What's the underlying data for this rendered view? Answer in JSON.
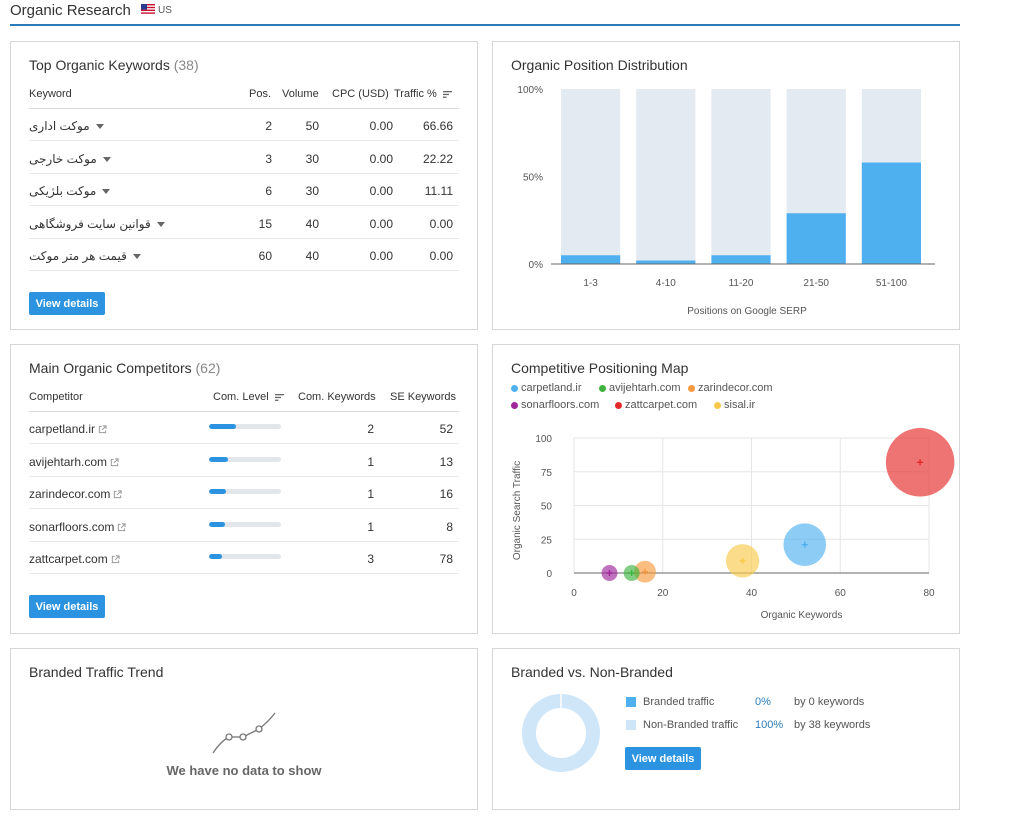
{
  "header": {
    "title": "Organic Research",
    "country": "US",
    "flag_icon": "us-flag-icon"
  },
  "top_keywords": {
    "title": "Top Organic Keywords",
    "count": "(38)",
    "columns": {
      "keyword": "Keyword",
      "pos": "Pos.",
      "volume": "Volume",
      "cpc": "CPC (USD)",
      "traffic": "Traffic %"
    },
    "rows": [
      {
        "keyword": "موکت اداری",
        "pos": "2",
        "volume": "50",
        "cpc": "0.00",
        "traffic": "66.66"
      },
      {
        "keyword": "موکت خارجی",
        "pos": "3",
        "volume": "30",
        "cpc": "0.00",
        "traffic": "22.22"
      },
      {
        "keyword": "موکت بلژیکی",
        "pos": "6",
        "volume": "30",
        "cpc": "0.00",
        "traffic": "11.11"
      },
      {
        "keyword": "قوانین سایت فروشگاهی",
        "pos": "15",
        "volume": "40",
        "cpc": "0.00",
        "traffic": "0.00"
      },
      {
        "keyword": "قیمت هر متر موکت",
        "pos": "60",
        "volume": "40",
        "cpc": "0.00",
        "traffic": "0.00"
      }
    ],
    "button": "View details"
  },
  "position_distribution": {
    "title": "Organic Position Distribution",
    "xlabel": "Positions on Google SERP"
  },
  "competitors": {
    "title": "Main Organic Competitors",
    "count": "(62)",
    "columns": {
      "competitor": "Competitor",
      "level": "Com. Level",
      "com_keywords": "Com. Keywords",
      "se_keywords": "SE Keywords"
    },
    "rows": [
      {
        "domain": "carpetland.ir",
        "level": 0.38,
        "com_keywords": "2",
        "se_keywords": "52"
      },
      {
        "domain": "avijehtarh.com",
        "level": 0.26,
        "com_keywords": "1",
        "se_keywords": "13"
      },
      {
        "domain": "zarindecor.com",
        "level": 0.24,
        "com_keywords": "1",
        "se_keywords": "16"
      },
      {
        "domain": "sonarfloors.com",
        "level": 0.22,
        "com_keywords": "1",
        "se_keywords": "8"
      },
      {
        "domain": "zattcarpet.com",
        "level": 0.18,
        "com_keywords": "3",
        "se_keywords": "78"
      }
    ],
    "button": "View details"
  },
  "positioning_map": {
    "title": "Competitive Positioning Map",
    "xlabel": "Organic Keywords",
    "ylabel": "Organic Search Traffic"
  },
  "branded_trend": {
    "title": "Branded Traffic Trend",
    "no_data": "We have no data to show"
  },
  "branded_vs_nonbranded": {
    "title": "Branded vs. Non-Branded",
    "branded_label": "Branded traffic",
    "branded_pct": "0%",
    "branded_kw": "by 0 keywords",
    "nonbranded_label": "Non-Branded traffic",
    "nonbranded_pct": "100%",
    "nonbranded_kw": "by 38 keywords",
    "button": "View details",
    "colors": {
      "branded": "#4fb0f0",
      "nonbranded": "#cfe6f8"
    }
  },
  "chart_data": [
    {
      "type": "bar",
      "title": "Organic Position Distribution",
      "categories": [
        "1-3",
        "4-10",
        "11-20",
        "21-50",
        "51-100"
      ],
      "values": [
        5,
        2,
        5,
        29,
        58
      ],
      "ylim": [
        0,
        100
      ],
      "yticks": [
        "0%",
        "50%",
        "100%"
      ],
      "xlabel": "Positions on Google SERP",
      "colors": {
        "bar": "#4fb0f0",
        "background": "#e3eaf1"
      }
    },
    {
      "type": "scatter",
      "title": "Competitive Positioning Map",
      "xlabel": "Organic Keywords",
      "ylabel": "Organic Search Traffic",
      "xlim": [
        0,
        80
      ],
      "ylim": [
        0,
        100
      ],
      "xticks": [
        "0",
        "20",
        "40",
        "60",
        "80"
      ],
      "yticks": [
        "0",
        "25",
        "50",
        "75",
        "100"
      ],
      "series": [
        {
          "name": "carpetland.ir",
          "x": 52,
          "y": 21,
          "color": "#4fb0f0"
        },
        {
          "name": "avijehtarh.com",
          "x": 13,
          "y": 0,
          "color": "#3fb33f"
        },
        {
          "name": "zarindecor.com",
          "x": 16,
          "y": 1,
          "color": "#f89a3f"
        },
        {
          "name": "sonarfloors.com",
          "x": 8,
          "y": 0,
          "color": "#a0269b"
        },
        {
          "name": "zattcarpet.com",
          "x": 78,
          "y": 82,
          "color": "#e52a2a"
        },
        {
          "name": "sisal.ir",
          "x": 38,
          "y": 9,
          "color": "#f7c94b"
        }
      ]
    },
    {
      "type": "pie",
      "title": "Branded vs. Non-Branded",
      "categories": [
        "Branded traffic",
        "Non-Branded traffic"
      ],
      "values": [
        0,
        100
      ]
    }
  ]
}
